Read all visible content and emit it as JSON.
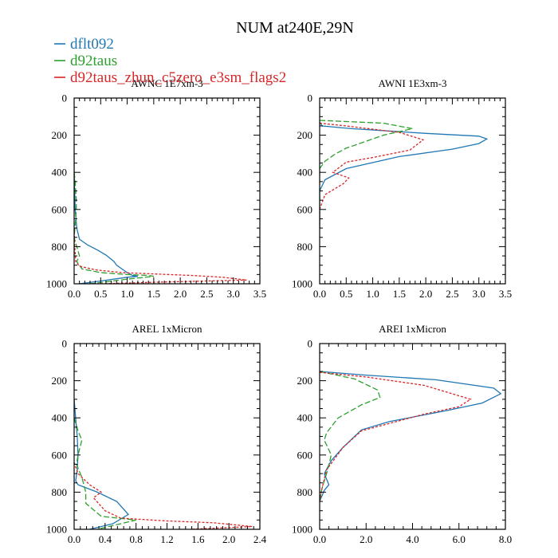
{
  "title": "NUM at240E,29N",
  "legend": [
    {
      "label": "dflt092",
      "color": "#1f77b4",
      "dash": "solid"
    },
    {
      "label": "d92taus",
      "color": "#2ca02c",
      "dash": "dashed"
    },
    {
      "label": "d92taus_zhun_c5zero_e3sm_flags2",
      "color": "#d62728",
      "dash": "dotted"
    }
  ],
  "chart_data": [
    {
      "type": "line",
      "title": "AWNC  1E7xm-3",
      "xlim": [
        0,
        3.5
      ],
      "ylim": [
        1000,
        0
      ],
      "xticks": [
        0,
        0.5,
        1.0,
        1.5,
        2.0,
        2.5,
        3.0,
        3.5
      ],
      "xticklabels": [
        "0.0",
        "0.5",
        "1.0",
        "1.5",
        "2.0",
        "2.5",
        "3.0",
        "3.5"
      ],
      "yticks": [
        0,
        200,
        400,
        600,
        800,
        1000
      ],
      "yticklabels": [
        "0",
        "200",
        "400",
        "600",
        "800",
        "1000"
      ],
      "series": [
        {
          "name": "dflt092",
          "x": [
            0.0,
            0.0,
            0.01,
            0.02,
            0.05,
            0.1,
            0.25,
            0.45,
            0.6,
            0.75,
            0.8,
            0.9,
            1.0,
            1.1,
            1.2,
            1.0,
            0.5,
            0.1
          ],
          "y": [
            300,
            400,
            500,
            600,
            700,
            760,
            790,
            820,
            845,
            880,
            900,
            920,
            940,
            955,
            960,
            965,
            985,
            1000
          ]
        },
        {
          "name": "d92taus",
          "x": [
            0.0,
            0.02,
            0.03,
            0.04,
            0.04,
            0.03,
            0.0,
            0.05,
            0.1,
            0.05,
            0.15,
            0.5,
            1.0,
            1.4,
            1.5,
            1.0,
            0.3
          ],
          "y": [
            400,
            450,
            500,
            550,
            600,
            650,
            750,
            800,
            850,
            880,
            920,
            940,
            950,
            955,
            960,
            975,
            1000
          ]
        },
        {
          "name": "d92taus_zhun_c5zero_e3sm_flags2",
          "x": [
            0.0,
            0.01,
            0.03,
            0.1,
            0.4,
            0.9,
            1.6,
            2.2,
            2.8,
            3.25,
            2.5,
            1.5,
            0.5
          ],
          "y": [
            700,
            800,
            880,
            905,
            925,
            940,
            948,
            955,
            965,
            980,
            985,
            992,
            1000
          ]
        }
      ]
    },
    {
      "type": "line",
      "title": "AWNI  1E3xm-3",
      "xlim": [
        0,
        3.5
      ],
      "ylim": [
        1000,
        0
      ],
      "xticks": [
        0,
        0.5,
        1.0,
        1.5,
        2.0,
        2.5,
        3.0,
        3.5
      ],
      "xticklabels": [
        "0.0",
        "0.5",
        "1.0",
        "1.5",
        "2.0",
        "2.5",
        "3.0",
        "3.5"
      ],
      "yticks": [
        0,
        200,
        400,
        600,
        800,
        1000
      ],
      "yticklabels": [
        "0",
        "200",
        "400",
        "600",
        "800",
        "1000"
      ],
      "series": [
        {
          "name": "dflt092",
          "x": [
            0.0,
            0.05,
            0.6,
            2.0,
            3.0,
            3.15,
            3.0,
            2.5,
            1.5,
            0.5,
            0.1,
            0.0,
            0.0
          ],
          "y": [
            130,
            150,
            165,
            190,
            205,
            220,
            245,
            275,
            315,
            380,
            440,
            500,
            700
          ]
        },
        {
          "name": "d92taus",
          "x": [
            0.0,
            1.2,
            1.75,
            1.2,
            0.8,
            0.5,
            0.3,
            0.1,
            0.0,
            0.0
          ],
          "y": [
            120,
            135,
            165,
            200,
            240,
            270,
            300,
            340,
            380,
            700
          ]
        },
        {
          "name": "d92taus_zhun_c5zero_e3sm_flags2",
          "x": [
            0.0,
            0.5,
            1.5,
            1.95,
            1.7,
            1.0,
            0.5,
            0.25,
            0.55,
            0.45,
            0.1,
            0.0,
            0.0
          ],
          "y": [
            135,
            150,
            185,
            225,
            280,
            320,
            345,
            400,
            430,
            460,
            520,
            600,
            700
          ]
        }
      ]
    },
    {
      "type": "line",
      "title": "AREL  1xMicron",
      "xlim": [
        0,
        2.4
      ],
      "ylim": [
        1000,
        0
      ],
      "xticks": [
        0,
        0.4,
        0.8,
        1.2,
        1.6,
        2.0,
        2.4
      ],
      "xticklabels": [
        "0.0",
        "0.4",
        "0.8",
        "1.2",
        "1.6",
        "2.0",
        "2.4"
      ],
      "yticks": [
        0,
        200,
        400,
        600,
        800,
        1000
      ],
      "yticklabels": [
        "0",
        "200",
        "400",
        "600",
        "800",
        "1000"
      ],
      "series": [
        {
          "name": "dflt092",
          "x": [
            0.0,
            0.02,
            0.04,
            0.05,
            0.04,
            0.02,
            0.05,
            0.3,
            0.55,
            0.7,
            0.5,
            0.2
          ],
          "y": [
            300,
            400,
            500,
            600,
            680,
            740,
            760,
            800,
            850,
            920,
            970,
            1000
          ]
        },
        {
          "name": "d92taus",
          "x": [
            0.0,
            0.05,
            0.1,
            0.05,
            0.03,
            0.1,
            0.15,
            0.15,
            0.35,
            0.8,
            0.3
          ],
          "y": [
            400,
            470,
            520,
            600,
            650,
            720,
            800,
            860,
            930,
            950,
            1000
          ]
        },
        {
          "name": "d92taus_zhun_c5zero_e3sm_flags2",
          "x": [
            0.0,
            0.05,
            0.2,
            0.35,
            0.25,
            0.4,
            0.6,
            1.2,
            1.8,
            2.3,
            1.5
          ],
          "y": [
            640,
            700,
            760,
            800,
            830,
            900,
            940,
            955,
            965,
            985,
            1000
          ]
        }
      ]
    },
    {
      "type": "line",
      "title": "AREI  1xMicron",
      "xlim": [
        0,
        8.0
      ],
      "ylim": [
        1000,
        0
      ],
      "xticks": [
        0,
        2.0,
        4.0,
        6.0,
        8.0
      ],
      "xticklabels": [
        "0.0",
        "2.0",
        "4.0",
        "6.0",
        "8.0"
      ],
      "yticks": [
        0,
        200,
        400,
        600,
        800,
        1000
      ],
      "yticklabels": [
        "0",
        "200",
        "400",
        "600",
        "800",
        "1000"
      ],
      "series": [
        {
          "name": "dflt092",
          "x": [
            0.0,
            2.0,
            5.0,
            7.5,
            7.8,
            7.0,
            5.5,
            3.0,
            1.8,
            1.0,
            0.5,
            0.2,
            0.4,
            0.2,
            0.0
          ],
          "y": [
            150,
            170,
            195,
            240,
            270,
            320,
            360,
            420,
            465,
            560,
            630,
            700,
            760,
            790,
            850
          ]
        },
        {
          "name": "d92taus",
          "x": [
            0.0,
            1.5,
            2.5,
            2.6,
            1.8,
            0.8,
            0.3,
            0.2,
            0.5,
            0.3,
            0.1,
            0.0
          ],
          "y": [
            150,
            190,
            250,
            290,
            330,
            400,
            480,
            520,
            600,
            700,
            780,
            850
          ]
        },
        {
          "name": "d92taus_zhun_c5zero_e3sm_flags2",
          "x": [
            0.0,
            2.0,
            4.5,
            6.5,
            6.0,
            4.5,
            3.0,
            1.8,
            1.0,
            0.3,
            0.1,
            0.0
          ],
          "y": [
            155,
            180,
            225,
            300,
            340,
            380,
            430,
            470,
            560,
            680,
            780,
            850
          ]
        }
      ]
    }
  ]
}
